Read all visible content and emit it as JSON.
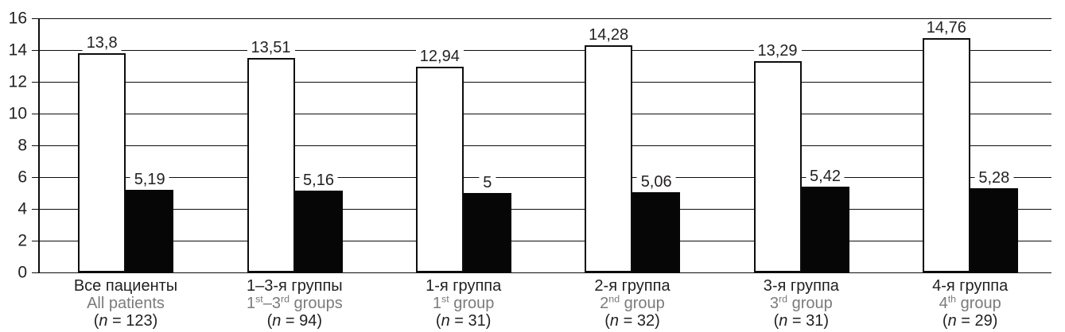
{
  "chart_data": {
    "type": "bar",
    "title": "",
    "xlabel": "",
    "ylabel": "",
    "ylim": [
      0,
      16
    ],
    "yticks": [
      0,
      2,
      4,
      6,
      8,
      10,
      12,
      14,
      16
    ],
    "ytick_labels": [
      "0",
      "2",
      "4",
      "6",
      "8",
      "10",
      "12",
      "14",
      "16"
    ],
    "grid": "horizontal",
    "legend": "none",
    "decimal_separator": ",",
    "categories": [
      {
        "ru": "Все пациенты",
        "en": "All patients",
        "n": "(n = 123)"
      },
      {
        "ru": "1–3-я группы",
        "en": "1st–3rd groups",
        "n": "(n = 94)"
      },
      {
        "ru": "1-я группа",
        "en": "1st group",
        "n": "(n = 31)"
      },
      {
        "ru": "2-я группа",
        "en": "2nd group",
        "n": "(n = 32)"
      },
      {
        "ru": "3-я группа",
        "en": "3rd group",
        "n": "(n = 31)"
      },
      {
        "ru": "4-я группа",
        "en": "4th group",
        "n": "(n = 29)"
      }
    ],
    "series": [
      {
        "name": "white-bars",
        "fill": "#ffffff",
        "border": "#000000",
        "values": [
          13.8,
          13.51,
          12.94,
          14.28,
          13.29,
          14.76
        ],
        "value_labels": [
          "13,8",
          "13,51",
          "12,94",
          "14,28",
          "13,29",
          "14,76"
        ]
      },
      {
        "name": "black-bars",
        "fill": "#000000",
        "values": [
          5.19,
          5.16,
          5,
          5.06,
          5.42,
          5.28
        ],
        "value_labels": [
          "5,19",
          "5,16",
          "5",
          "5,06",
          "5,42",
          "5,28"
        ]
      }
    ],
    "colors": {
      "line": "#000000",
      "text": "#231f20",
      "secondary_text": "#7b7b7b",
      "background": "#ffffff"
    }
  }
}
